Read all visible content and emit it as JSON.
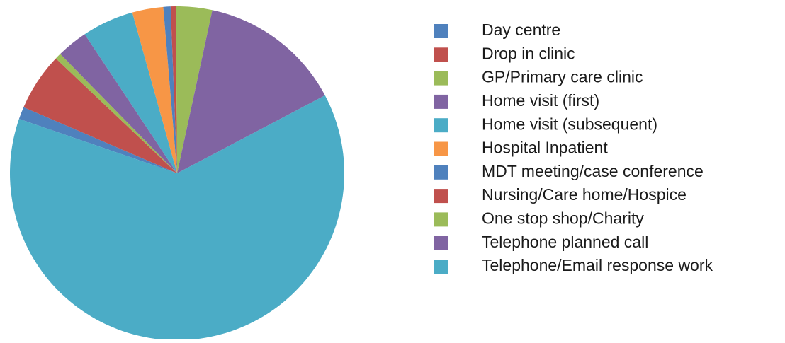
{
  "chart_data": {
    "type": "pie",
    "categories": [
      "Day centre",
      "Drop in clinic",
      "GP/Primary care clinic",
      "Home visit (first)",
      "Home visit (subsequent)",
      "Hospital Inpatient",
      "MDT meeting/case conference",
      "Nursing/Care home/Hospice",
      "One stop shop/Charity",
      "Telephone planned call",
      "Telephone/Email response work"
    ],
    "values": [
      1.2,
      5.6,
      0.6,
      3.0,
      5.0,
      3.0,
      0.7,
      0.5,
      3.5,
      13.9,
      63.0
    ],
    "colors": [
      "#4f81bd",
      "#c0504d",
      "#9bbb59",
      "#8064a2",
      "#4bacc6",
      "#f79646",
      "#4f81bd",
      "#c0504d",
      "#9bbb59",
      "#8064a2",
      "#4bacc6"
    ],
    "legend": "right"
  }
}
